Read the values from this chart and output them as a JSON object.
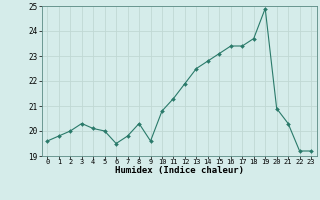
{
  "x": [
    0,
    1,
    2,
    3,
    4,
    5,
    6,
    7,
    8,
    9,
    10,
    11,
    12,
    13,
    14,
    15,
    16,
    17,
    18,
    19,
    20,
    21,
    22,
    23
  ],
  "y": [
    19.6,
    19.8,
    20.0,
    20.3,
    20.1,
    20.0,
    19.5,
    19.8,
    20.3,
    19.6,
    20.8,
    21.3,
    21.9,
    22.5,
    22.8,
    23.1,
    23.4,
    23.4,
    23.7,
    24.9,
    20.9,
    20.3,
    19.2,
    19.2
  ],
  "ylim": [
    19,
    25
  ],
  "yticks": [
    19,
    20,
    21,
    22,
    23,
    24,
    25
  ],
  "xticks": [
    0,
    1,
    2,
    3,
    4,
    5,
    6,
    7,
    8,
    9,
    10,
    11,
    12,
    13,
    14,
    15,
    16,
    17,
    18,
    19,
    20,
    21,
    22,
    23
  ],
  "xlabel": "Humidex (Indice chaleur)",
  "line_color": "#2a7a6a",
  "marker_color": "#2a7a6a",
  "bg_color": "#d5ecea",
  "grid_color": "#c0d8d4",
  "figsize": [
    3.2,
    2.0
  ],
  "dpi": 100
}
